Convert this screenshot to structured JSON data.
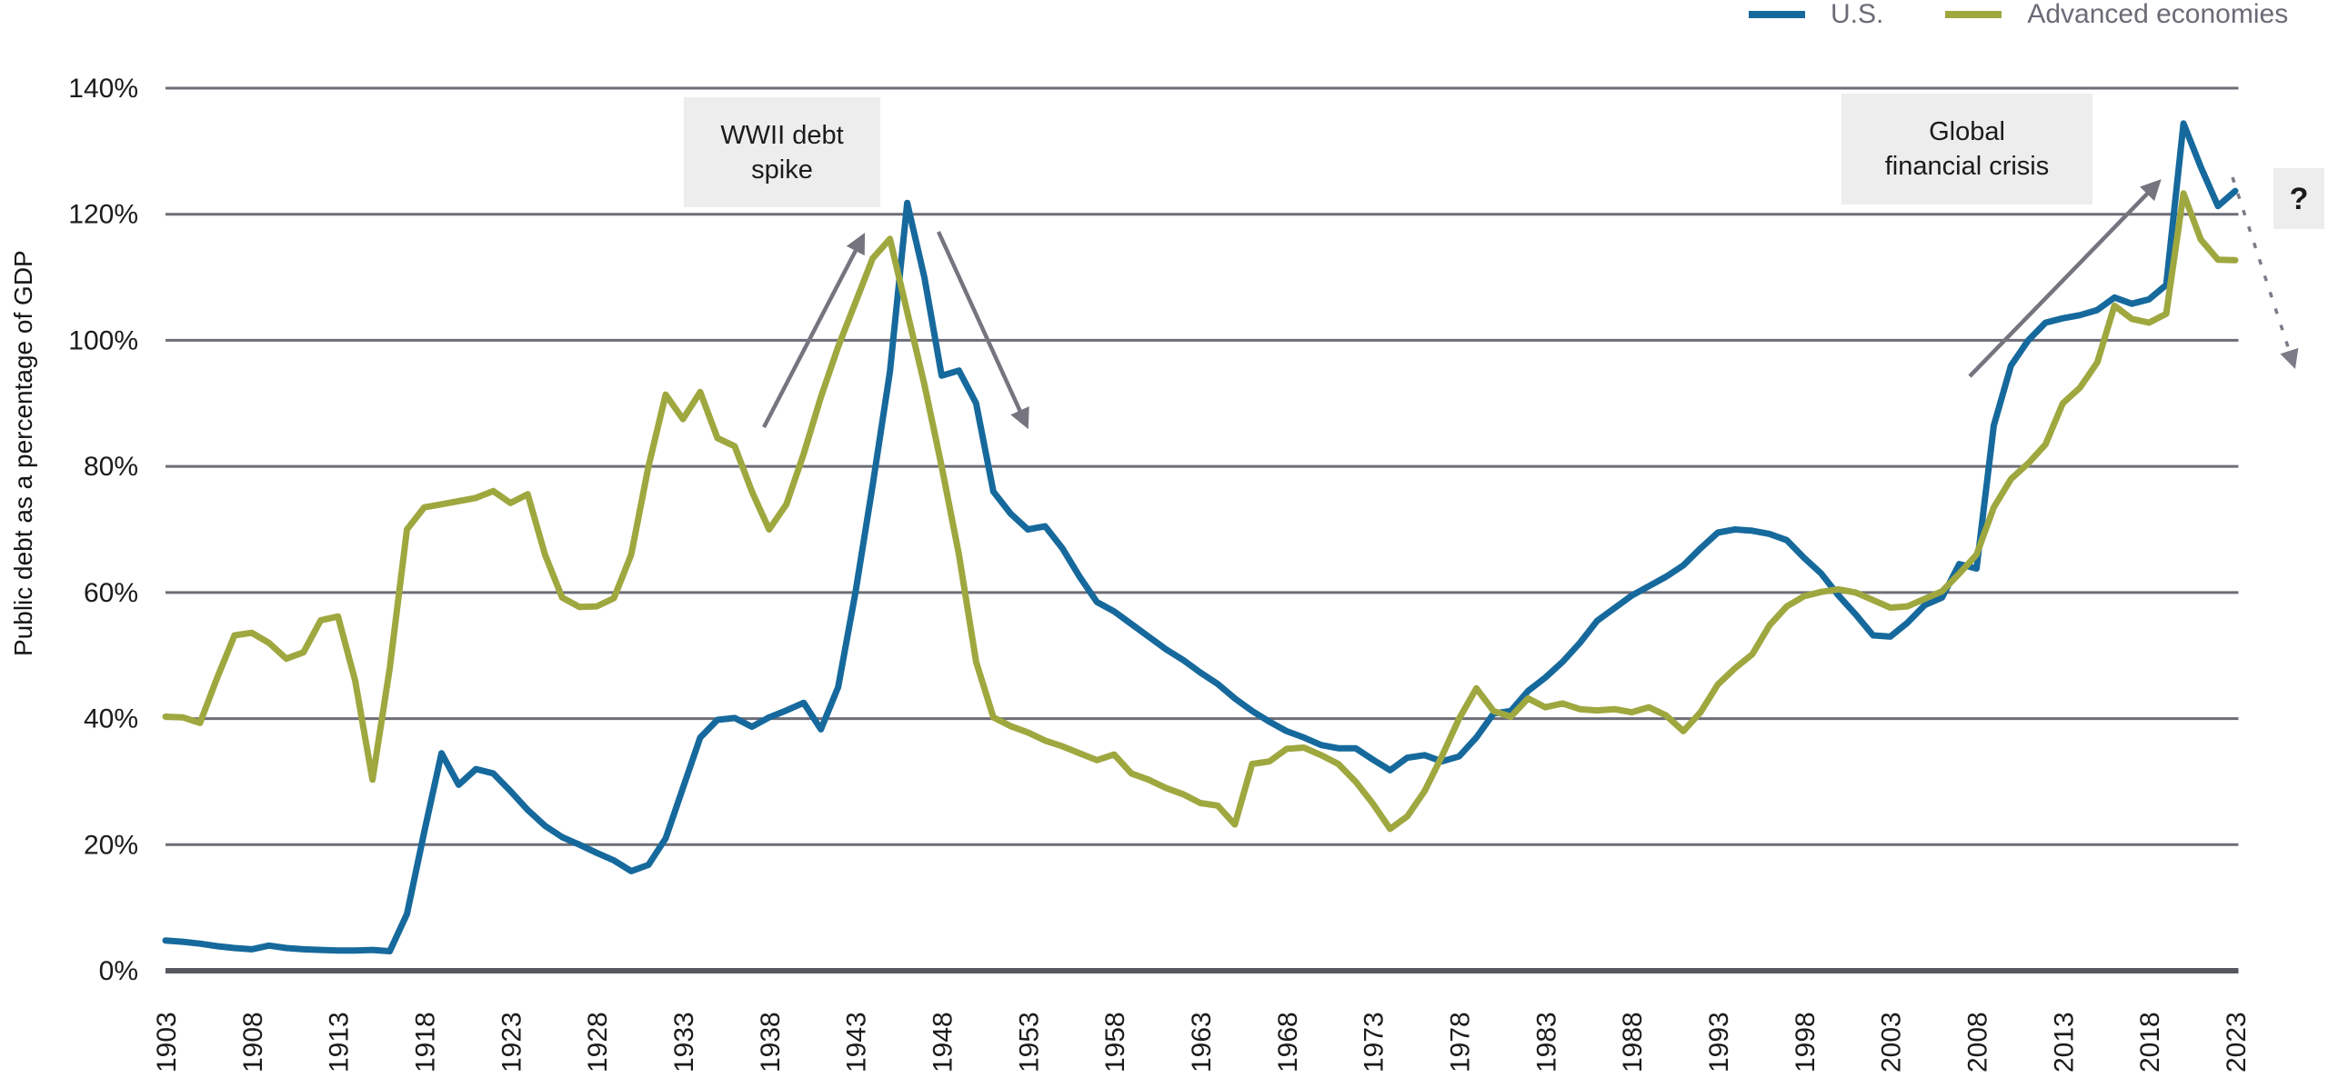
{
  "y_axis": {
    "title": "Public debt as a percentage of GDP",
    "ticks": [
      0,
      20,
      40,
      60,
      80,
      100,
      120,
      140
    ],
    "tick_labels": [
      "0%",
      "20%",
      "40%",
      "60%",
      "80%",
      "100%",
      "120%",
      "140%"
    ]
  },
  "x_axis": {
    "tick_labels": [
      "1903",
      "1908",
      "1913",
      "1918",
      "1923",
      "1928",
      "1933",
      "1938",
      "1943",
      "1948",
      "1953",
      "1958",
      "1963",
      "1968",
      "1973",
      "1978",
      "1983",
      "1988",
      "1993",
      "1998",
      "2003",
      "2008",
      "2013",
      "2018",
      "2023"
    ]
  },
  "legend": {
    "items": [
      {
        "label": "U.S.",
        "color": "#16699c"
      },
      {
        "label": "Advanced economies",
        "color": "#9fa73f"
      }
    ]
  },
  "annotations": {
    "wwii_debt_spike": {
      "line1": "WWII debt",
      "line2": "spike"
    },
    "global_financial_crisis": {
      "line1": "Global",
      "line2": "financial crisis"
    },
    "question_mark": {
      "text": "?"
    }
  },
  "colors": {
    "us_line": "#16699c",
    "advanced_economies_line": "#9fa73f",
    "gridline": "#6d6d77",
    "axis_line": "#565860",
    "arrow": "#76747f",
    "dashed_arrow": "#7d7b87",
    "annotation_bg": "#ededee",
    "annotation_text": "#1b1b1b",
    "legend_text": "#6c6a76",
    "tick_label": "#1b1b1b"
  },
  "chart_data": {
    "type": "line",
    "title": "",
    "xlabel": "",
    "ylabel": "Public debt as a percentage of GDP",
    "ylim": [
      0,
      140
    ],
    "grid": "horizontal",
    "legend_position": "top-right",
    "x": [
      1903,
      1904,
      1905,
      1906,
      1907,
      1908,
      1909,
      1910,
      1911,
      1912,
      1913,
      1914,
      1915,
      1916,
      1917,
      1918,
      1919,
      1920,
      1921,
      1922,
      1923,
      1924,
      1925,
      1926,
      1927,
      1928,
      1929,
      1930,
      1931,
      1932,
      1933,
      1934,
      1935,
      1936,
      1937,
      1938,
      1939,
      1940,
      1941,
      1942,
      1943,
      1944,
      1945,
      1946,
      1947,
      1948,
      1949,
      1950,
      1951,
      1952,
      1953,
      1954,
      1955,
      1956,
      1957,
      1958,
      1959,
      1960,
      1961,
      1962,
      1963,
      1964,
      1965,
      1966,
      1967,
      1968,
      1969,
      1970,
      1971,
      1972,
      1973,
      1974,
      1975,
      1976,
      1977,
      1978,
      1979,
      1980,
      1981,
      1982,
      1983,
      1984,
      1985,
      1986,
      1987,
      1988,
      1989,
      1990,
      1991,
      1992,
      1993,
      1994,
      1995,
      1996,
      1997,
      1998,
      1999,
      2000,
      2001,
      2002,
      2003,
      2004,
      2005,
      2006,
      2007,
      2008,
      2009,
      2010,
      2011,
      2012,
      2013,
      2014,
      2015,
      2016,
      2017,
      2018,
      2019,
      2020,
      2021,
      2022,
      2023
    ],
    "series": [
      {
        "name": "U.S.",
        "color": "#16699c",
        "values": [
          4.8,
          4.6,
          4.3,
          3.9,
          3.6,
          3.4,
          4.0,
          3.6,
          3.4,
          3.3,
          3.2,
          3.2,
          3.3,
          3.1,
          9.0,
          22.0,
          34.5,
          29.5,
          32.0,
          31.3,
          28.5,
          25.5,
          23.0,
          21.2,
          20.0,
          18.7,
          17.5,
          15.8,
          16.8,
          21.0,
          29.0,
          37.0,
          39.8,
          40.1,
          38.7,
          40.2,
          41.3,
          42.5,
          38.3,
          45.0,
          60.0,
          77.0,
          95.0,
          121.8,
          110.0,
          94.4,
          95.2,
          90.0,
          76.0,
          72.5,
          70.0,
          70.5,
          67.0,
          62.5,
          58.5,
          57.0,
          55.0,
          53.0,
          51.0,
          49.3,
          47.3,
          45.5,
          43.2,
          41.2,
          39.5,
          38.0,
          37.0,
          35.8,
          35.3,
          35.3,
          33.5,
          31.8,
          33.8,
          34.2,
          33.2,
          34.0,
          37.0,
          40.8,
          41.2,
          44.4,
          46.5,
          49.0,
          52.0,
          55.5,
          57.5,
          59.5,
          61.0,
          62.5,
          64.3,
          67.0,
          69.5,
          70.0,
          69.8,
          69.3,
          68.3,
          65.5,
          63.0,
          59.5,
          56.5,
          53.2,
          53.0,
          55.2,
          58.0,
          59.2,
          64.5,
          63.8,
          86.5,
          96.0,
          100.0,
          102.8,
          103.5,
          104.0,
          104.8,
          106.8,
          105.8,
          106.5,
          108.8,
          134.4,
          127.5,
          121.3,
          123.7
        ]
      },
      {
        "name": "Advanced economies",
        "color": "#9fa73f",
        "values": [
          40.3,
          40.2,
          39.3,
          46.5,
          53.2,
          53.6,
          52.0,
          49.5,
          50.5,
          55.6,
          56.2,
          46.0,
          30.3,
          48.0,
          70.0,
          73.5,
          74.0,
          74.5,
          75.0,
          76.1,
          74.2,
          75.6,
          66.0,
          59.2,
          57.7,
          57.8,
          59.1,
          66.0,
          80.0,
          91.4,
          87.5,
          91.8,
          84.5,
          83.2,
          76.0,
          70.0,
          74.0,
          82.0,
          91.0,
          99.0,
          106.0,
          113.0,
          116.1,
          104.5,
          93.0,
          80.0,
          66.0,
          49.0,
          40.2,
          38.8,
          37.8,
          36.5,
          35.6,
          34.5,
          33.4,
          34.3,
          31.3,
          30.3,
          29.0,
          28.0,
          26.6,
          26.2,
          23.2,
          32.8,
          33.2,
          35.2,
          35.4,
          34.2,
          32.8,
          30.0,
          26.5,
          22.5,
          24.5,
          28.5,
          34.0,
          40.0,
          44.8,
          41.2,
          40.3,
          43.2,
          41.8,
          42.4,
          41.5,
          41.3,
          41.5,
          41.0,
          41.8,
          40.5,
          38.0,
          41.0,
          45.4,
          48.0,
          50.2,
          54.8,
          57.8,
          59.4,
          60.1,
          60.5,
          60.0,
          58.8,
          57.6,
          57.8,
          59.0,
          60.2,
          63.0,
          66.0,
          73.5,
          78.0,
          80.5,
          83.5,
          90.0,
          92.5,
          96.5,
          105.5,
          103.4,
          102.8,
          104.2,
          123.3,
          116.0,
          112.8,
          112.7
        ]
      }
    ]
  }
}
